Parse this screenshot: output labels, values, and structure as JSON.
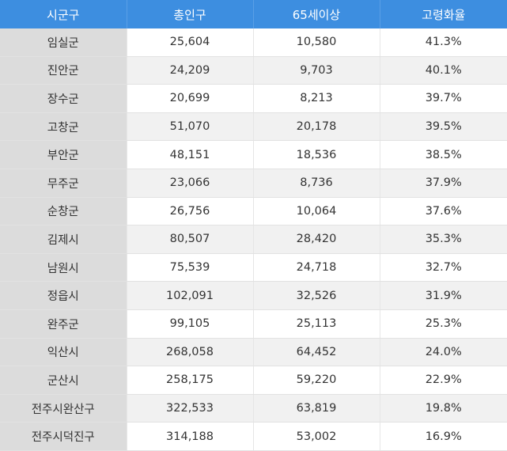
{
  "table": {
    "headers": [
      "시군구",
      "총인구",
      "65세이상",
      "고령화율"
    ],
    "rows": [
      [
        "임실군",
        "25,604",
        "10,580",
        "41.3%"
      ],
      [
        "진안군",
        "24,209",
        "9,703",
        "40.1%"
      ],
      [
        "장수군",
        "20,699",
        "8,213",
        "39.7%"
      ],
      [
        "고창군",
        "51,070",
        "20,178",
        "39.5%"
      ],
      [
        "부안군",
        "48,151",
        "18,536",
        "38.5%"
      ],
      [
        "무주군",
        "23,066",
        "8,736",
        "37.9%"
      ],
      [
        "순창군",
        "26,756",
        "10,064",
        "37.6%"
      ],
      [
        "김제시",
        "80,507",
        "28,420",
        "35.3%"
      ],
      [
        "남원시",
        "75,539",
        "24,718",
        "32.7%"
      ],
      [
        "정읍시",
        "102,091",
        "32,526",
        "31.9%"
      ],
      [
        "완주군",
        "99,105",
        "25,113",
        "25.3%"
      ],
      [
        "익산시",
        "268,058",
        "64,452",
        "24.0%"
      ],
      [
        "군산시",
        "258,175",
        "59,220",
        "22.9%"
      ],
      [
        "전주시완산구",
        "322,533",
        "63,819",
        "19.8%"
      ],
      [
        "전주시덕진구",
        "314,188",
        "53,002",
        "16.9%"
      ]
    ]
  },
  "colors": {
    "header_bg": "#3d8ee0",
    "header_text": "#ffffff",
    "region_col_bg": "#dcdcdc",
    "stripe_bg": "#f1f1f1"
  }
}
